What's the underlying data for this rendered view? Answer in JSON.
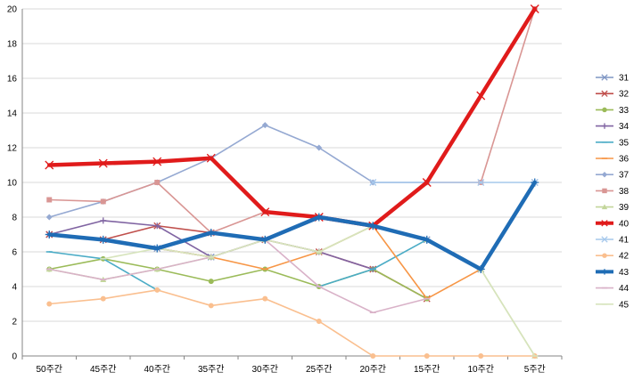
{
  "chart_data": {
    "type": "line",
    "title": "",
    "xlabel": "",
    "ylabel": "",
    "ylim": [
      0,
      20
    ],
    "yticks": [
      0,
      2,
      4,
      6,
      8,
      10,
      12,
      14,
      16,
      18,
      20
    ],
    "grid": true,
    "legend_position": "right",
    "categories": [
      "50주간",
      "45주간",
      "40주간",
      "35주간",
      "30주간",
      "25주간",
      "20주간",
      "15주간",
      "10주간",
      "5주간"
    ],
    "series": [
      {
        "name": "31",
        "color": "#7f96c4",
        "marker": "x",
        "thick": false,
        "values": [
          7,
          6.7,
          6.2,
          5.7,
          6.7,
          8,
          7.5,
          6.7,
          5,
          10
        ]
      },
      {
        "name": "32",
        "color": "#c0504d",
        "marker": "x",
        "thick": false,
        "values": [
          7,
          6.7,
          7.5,
          7.1,
          6.7,
          6,
          5,
          3.3,
          null,
          null
        ]
      },
      {
        "name": "33",
        "color": "#9bbb59",
        "marker": "circle",
        "thick": false,
        "values": [
          5,
          5.6,
          5,
          4.3,
          5,
          4,
          5,
          3.3,
          null,
          null
        ]
      },
      {
        "name": "34",
        "color": "#8064a2",
        "marker": "plus",
        "thick": false,
        "values": [
          7,
          7.8,
          7.5,
          5.7,
          6.7,
          6,
          5,
          null,
          null,
          null
        ]
      },
      {
        "name": "35",
        "color": "#4bacc6",
        "marker": "dash",
        "thick": false,
        "values": [
          6,
          5.6,
          3.8,
          null,
          null,
          4,
          5,
          6.7,
          null,
          null
        ]
      },
      {
        "name": "36",
        "color": "#f79646",
        "marker": "dash",
        "thick": false,
        "values": [
          null,
          null,
          6.2,
          5.7,
          5,
          6,
          7.5,
          3.3,
          5,
          null
        ]
      },
      {
        "name": "37",
        "color": "#95a9d2",
        "marker": "diamond",
        "thick": false,
        "values": [
          8,
          8.9,
          10,
          11.4,
          13.3,
          12,
          10,
          10,
          null,
          null
        ]
      },
      {
        "name": "38",
        "color": "#d99694",
        "marker": "square",
        "thick": false,
        "values": [
          9,
          8.9,
          10,
          7.1,
          8.3,
          8,
          7.5,
          10,
          10,
          20
        ]
      },
      {
        "name": "39",
        "color": "#c3d69b",
        "marker": "triangle",
        "thick": false,
        "values": [
          5,
          4.4,
          5,
          5.7,
          6.7,
          6,
          7.5,
          6.7,
          5,
          0
        ]
      },
      {
        "name": "40",
        "color": "#e01b1b",
        "marker": "x",
        "thick": true,
        "values": [
          11,
          11.1,
          11.2,
          11.4,
          8.3,
          8,
          7.5,
          10,
          15,
          20
        ]
      },
      {
        "name": "41",
        "color": "#a6c8ec",
        "marker": "x",
        "thick": false,
        "values": [
          null,
          null,
          null,
          null,
          null,
          null,
          10,
          10,
          10,
          10
        ]
      },
      {
        "name": "42",
        "color": "#fabf8f",
        "marker": "circle",
        "thick": false,
        "values": [
          3,
          3.3,
          3.8,
          2.9,
          3.3,
          2,
          0,
          0,
          0,
          0
        ]
      },
      {
        "name": "43",
        "color": "#1f6cb5",
        "marker": "plus",
        "thick": true,
        "values": [
          7,
          6.7,
          6.2,
          7.1,
          6.7,
          8,
          7.5,
          6.7,
          5,
          10
        ]
      },
      {
        "name": "44",
        "color": "#d9b2c8",
        "marker": "dash",
        "thick": false,
        "values": [
          5,
          4.4,
          5,
          5.7,
          6.7,
          4,
          2.5,
          3.3,
          null,
          null
        ]
      },
      {
        "name": "45",
        "color": "#d7e4bd",
        "marker": "dash",
        "thick": false,
        "values": [
          null,
          5.6,
          6.2,
          5.7,
          6.7,
          6,
          7.5,
          6.7,
          5,
          0
        ]
      }
    ]
  }
}
